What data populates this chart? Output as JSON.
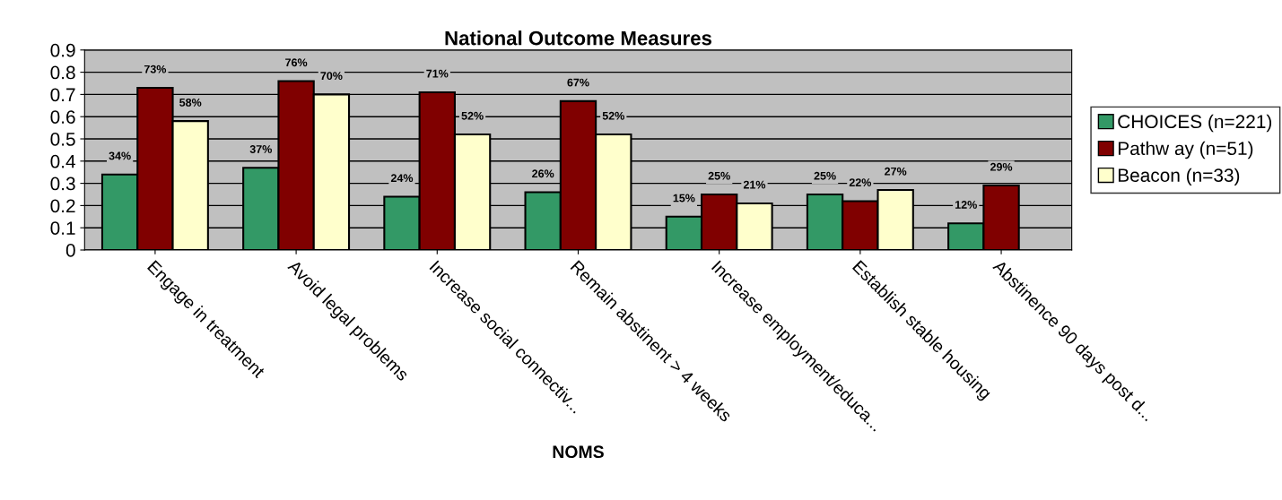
{
  "chart_data": {
    "type": "bar",
    "title": "National Outcome Measures",
    "xlabel": "NOMS",
    "categories": [
      "Engage in treatment",
      "Avoid legal problems",
      "Increase social connectiv...",
      "Remain abstinent > 4 weeks",
      "Increase employment/educa...",
      "Establish stable housing",
      "Abstinence 90 days post d..."
    ],
    "series": [
      {
        "name": "CHOICES (n=221)",
        "color": "#339966",
        "values": [
          0.34,
          0.37,
          0.24,
          0.26,
          0.15,
          0.25,
          0.12
        ],
        "value_labels": [
          "34%",
          "37%",
          "24%",
          "26%",
          "15%",
          "25%",
          "12%"
        ]
      },
      {
        "name": "Pathw ay (n=51)",
        "color": "#800000",
        "values": [
          0.73,
          0.76,
          0.71,
          0.67,
          0.25,
          0.22,
          0.29
        ],
        "value_labels": [
          "73%",
          "76%",
          "71%",
          "67%",
          "25%",
          "22%",
          "29%"
        ]
      },
      {
        "name": "Beacon (n=33)",
        "color": "#ffffcc",
        "values": [
          0.58,
          0.7,
          0.52,
          0.52,
          0.21,
          0.27,
          null
        ],
        "value_labels": [
          "58%",
          "70%",
          "52%",
          "52%",
          "21%",
          "27%",
          null
        ]
      }
    ],
    "ylim": [
      0,
      0.9
    ],
    "yticks": [
      0,
      0.1,
      0.2,
      0.3,
      0.4,
      0.5,
      0.6,
      0.7,
      0.8,
      0.9
    ],
    "grid": "y",
    "legend": "right"
  }
}
